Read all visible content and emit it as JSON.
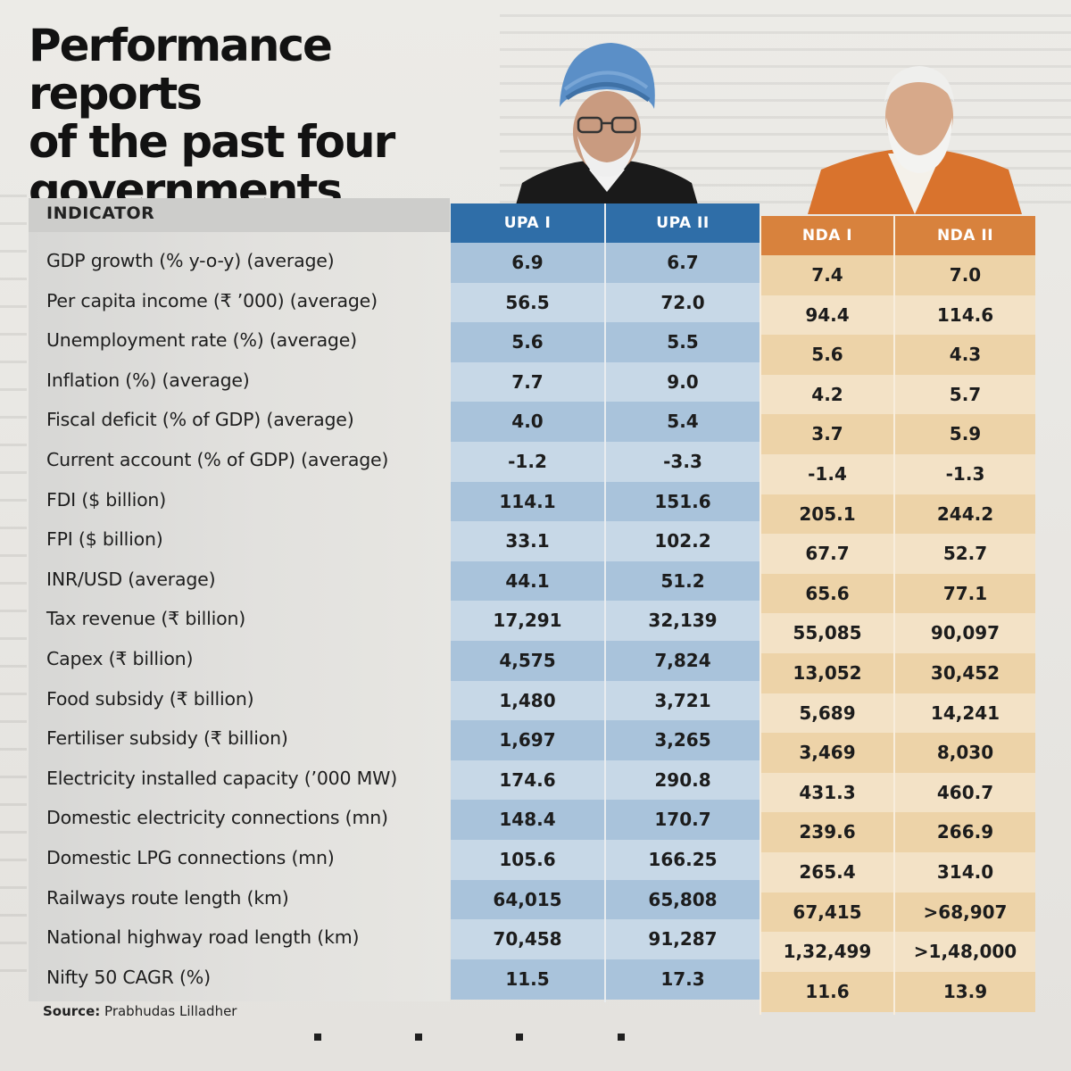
{
  "headline": {
    "line1": "Performance reports",
    "line2": "of the past four",
    "line3": "governments"
  },
  "table": {
    "indicator_header": "INDICATOR",
    "columns": [
      "UPA I",
      "UPA II",
      "NDA I",
      "NDA II"
    ],
    "rows": [
      {
        "label": "GDP growth (% y-o-y) (average)",
        "values": [
          "6.9",
          "6.7",
          "7.4",
          "7.0"
        ]
      },
      {
        "label": "Per capita income (₹ ’000) (average)",
        "values": [
          "56.5",
          "72.0",
          "94.4",
          "114.6"
        ]
      },
      {
        "label": "Unemployment rate (%) (average)",
        "values": [
          "5.6",
          "5.5",
          "5.6",
          "4.3"
        ]
      },
      {
        "label": "Inflation (%) (average)",
        "values": [
          "7.7",
          "9.0",
          "4.2",
          "5.7"
        ]
      },
      {
        "label": "Fiscal deficit (% of GDP) (average)",
        "values": [
          "4.0",
          "5.4",
          "3.7",
          "5.9"
        ]
      },
      {
        "label": "Current account (% of GDP) (average)",
        "values": [
          "-1.2",
          "-3.3",
          "-1.4",
          "-1.3"
        ]
      },
      {
        "label": "FDI ($ billion)",
        "values": [
          "114.1",
          "151.6",
          "205.1",
          "244.2"
        ]
      },
      {
        "label": "FPI ($ billion)",
        "values": [
          "33.1",
          "102.2",
          "67.7",
          "52.7"
        ]
      },
      {
        "label": "INR/USD (average)",
        "values": [
          "44.1",
          "51.2",
          "65.6",
          "77.1"
        ]
      },
      {
        "label": "Tax revenue (₹ billion)",
        "values": [
          "17,291",
          "32,139",
          "55,085",
          "90,097"
        ]
      },
      {
        "label": "Capex (₹ billion)",
        "values": [
          "4,575",
          "7,824",
          "13,052",
          "30,452"
        ]
      },
      {
        "label": "Food subsidy (₹ billion)",
        "values": [
          "1,480",
          "3,721",
          "5,689",
          "14,241"
        ]
      },
      {
        "label": "Fertiliser subsidy (₹ billion)",
        "values": [
          "1,697",
          "3,265",
          "3,469",
          "8,030"
        ]
      },
      {
        "label": "Electricity installed capacity (’000 MW)",
        "values": [
          "174.6",
          "290.8",
          "431.3",
          "460.7"
        ]
      },
      {
        "label": "Domestic electricity connections (mn)",
        "values": [
          "148.4",
          "170.7",
          "239.6",
          "266.9"
        ]
      },
      {
        "label": "Domestic LPG connections (mn)",
        "values": [
          "105.6",
          "166.25",
          "265.4",
          "314.0"
        ]
      },
      {
        "label": "Railways route length (km)",
        "values": [
          "64,015",
          "65,808",
          "67,415",
          ">68,907"
        ]
      },
      {
        "label": "National highway road length (km)",
        "values": [
          "70,458",
          "91,287",
          "1,32,499",
          ">1,48,000"
        ]
      },
      {
        "label": "Nifty 50 CAGR (%)",
        "values": [
          "11.5",
          "17.3",
          "11.6",
          "13.9"
        ]
      }
    ]
  },
  "source": {
    "label": "Source:",
    "text": "Prabhudas Lilladher"
  },
  "colors": {
    "upa_header": "#2f6ea8",
    "nda_header": "#d8823d",
    "upa_band": "#a9c3db",
    "nda_band": "#edd3a8"
  }
}
